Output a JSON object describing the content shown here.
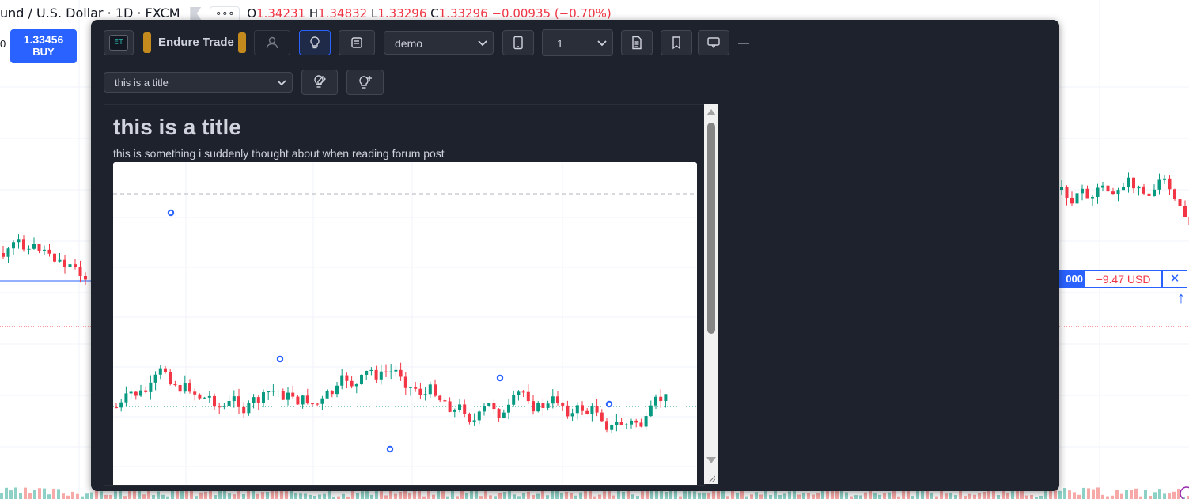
{
  "background": {
    "symbol": "und / U.S. Dollar · 1D · FXCM",
    "more_label": "∘∘∘",
    "ohlc": {
      "o_label": "O",
      "o": "1.34231",
      "h_label": "H",
      "h": "1.34832",
      "l_label": "L",
      "l": "1.33296",
      "c_label": "C",
      "c": "1.33296",
      "change": "−0.00935 (−0.70%)"
    },
    "left_trunc": "0",
    "buy": {
      "price": "1.33456",
      "label": "BUY"
    },
    "position": {
      "qty": "000",
      "pl": "−9.47 USD",
      "close": "✕",
      "arrow": "↑"
    },
    "colors": {
      "up": "#089981",
      "down": "#f23645",
      "accent": "#2962ff"
    }
  },
  "panel": {
    "logo_text": "ET",
    "brand": "Endure Trade",
    "account_select": "demo",
    "count_select": "1",
    "dash": "—",
    "idea_select": "this is a title",
    "icons": [
      "user-icon",
      "lightbulb-icon",
      "window-icon",
      "mobile-icon",
      "document-icon",
      "bookmark-icon",
      "comment-icon",
      "lightbulb-edit-icon",
      "lightbulb-add-icon"
    ]
  },
  "idea": {
    "title": "this is a title",
    "description": "this is something i suddenly thought about when reading forum post"
  }
}
